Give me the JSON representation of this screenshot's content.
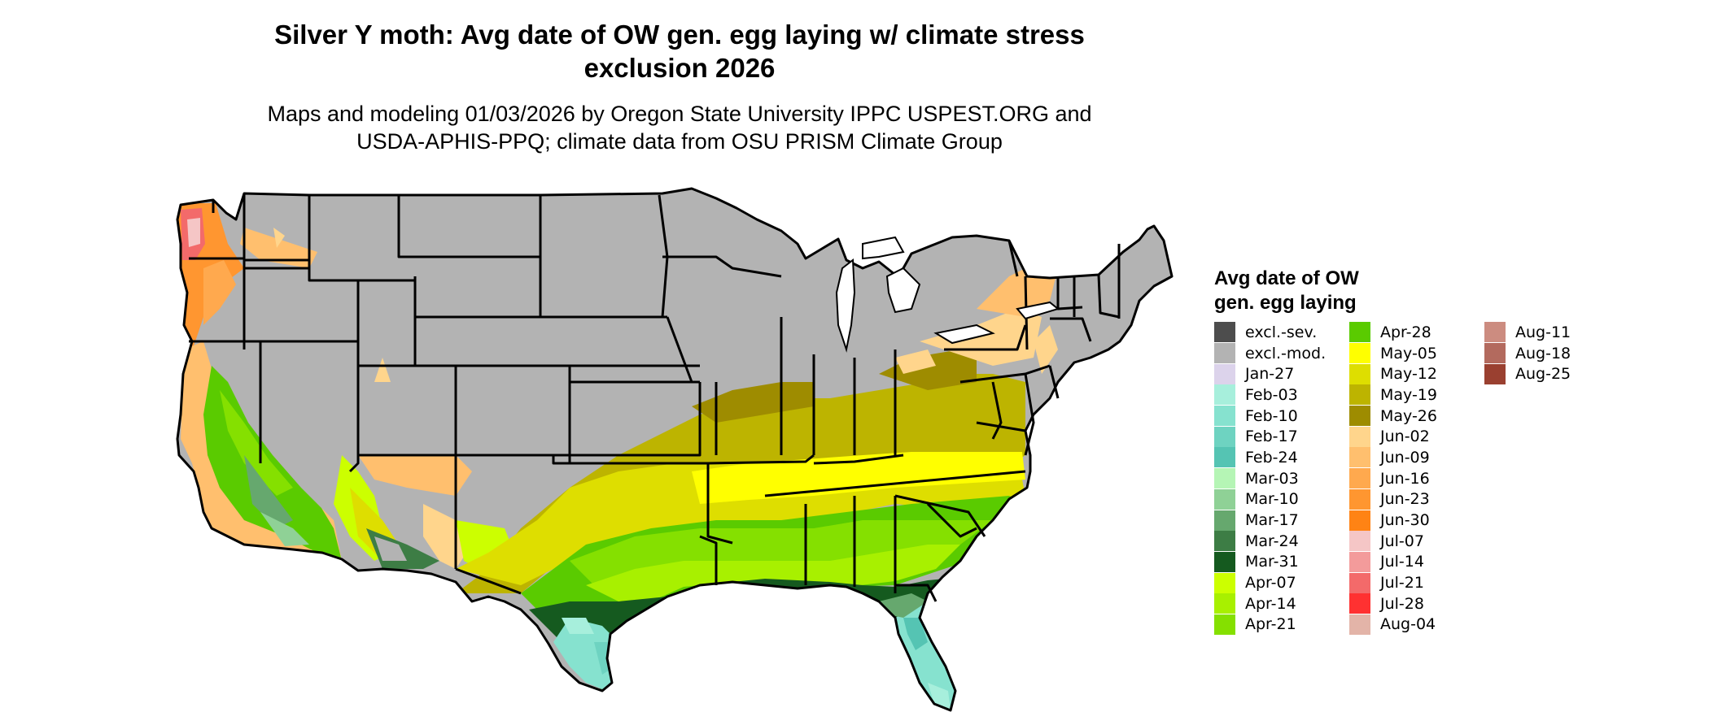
{
  "title_line1": "Silver Y moth: Avg date of OW gen. egg laying w/ climate stress",
  "title_line2": "exclusion 2026",
  "subtitle_line1": "Maps and modeling 01/03/2026 by Oregon State University IPPC USPEST.ORG and",
  "subtitle_line2": "USDA-APHIS-PPQ; climate data from OSU PRISM Climate Group",
  "legend": {
    "title_line1": "Avg date of OW",
    "title_line2": "gen. egg laying",
    "items": [
      {
        "label": "excl.-sev.",
        "color": "#4d4d4d"
      },
      {
        "label": "excl.-mod.",
        "color": "#b3b3b3"
      },
      {
        "label": "Jan-27",
        "color": "#dcd3eb"
      },
      {
        "label": "Feb-03",
        "color": "#a7efdc"
      },
      {
        "label": "Feb-10",
        "color": "#86e2cf"
      },
      {
        "label": "Feb-17",
        "color": "#6ed3c1"
      },
      {
        "label": "Feb-24",
        "color": "#55c4b3"
      },
      {
        "label": "Mar-03",
        "color": "#b5f5b5"
      },
      {
        "label": "Mar-10",
        "color": "#8fd196"
      },
      {
        "label": "Mar-17",
        "color": "#66a86e"
      },
      {
        "label": "Mar-24",
        "color": "#3d7d45"
      },
      {
        "label": "Mar-31",
        "color": "#155a1f"
      },
      {
        "label": "Apr-07",
        "color": "#ccff00"
      },
      {
        "label": "Apr-14",
        "color": "#a8f000"
      },
      {
        "label": "Apr-21",
        "color": "#85e000"
      },
      {
        "label": "Apr-28",
        "color": "#5acb00"
      },
      {
        "label": "May-05",
        "color": "#ffff00"
      },
      {
        "label": "May-12",
        "color": "#dede00"
      },
      {
        "label": "May-19",
        "color": "#bdb400"
      },
      {
        "label": "May-26",
        "color": "#9e8c00"
      },
      {
        "label": "Jun-02",
        "color": "#ffd58c"
      },
      {
        "label": "Jun-09",
        "color": "#ffbf6e"
      },
      {
        "label": "Jun-16",
        "color": "#ffa94e"
      },
      {
        "label": "Jun-23",
        "color": "#ff9630"
      },
      {
        "label": "Jun-30",
        "color": "#ff8314"
      },
      {
        "label": "Jul-07",
        "color": "#f5c6c6"
      },
      {
        "label": "Jul-14",
        "color": "#f39b9b"
      },
      {
        "label": "Jul-21",
        "color": "#f36a6a"
      },
      {
        "label": "Jul-28",
        "color": "#ff3131"
      },
      {
        "label": "Aug-04",
        "color": "#e3b4a8"
      },
      {
        "label": "Aug-11",
        "color": "#cc8c80"
      },
      {
        "label": "Aug-18",
        "color": "#b36a5e"
      },
      {
        "label": "Aug-25",
        "color": "#9a4030"
      }
    ]
  }
}
